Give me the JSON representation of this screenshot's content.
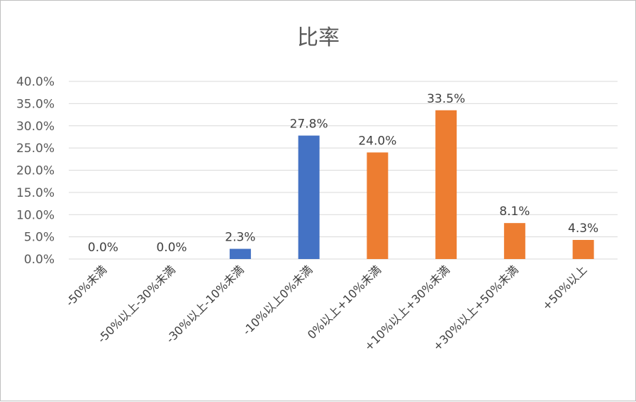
{
  "chart_data": {
    "type": "bar",
    "title": "比率",
    "xlabel": "",
    "ylabel": "",
    "ylim": [
      0,
      0.4
    ],
    "yticks": [
      "0.0%",
      "5.0%",
      "10.0%",
      "15.0%",
      "20.0%",
      "25.0%",
      "30.0%",
      "35.0%",
      "40.0%"
    ],
    "grid": true,
    "legend": "none",
    "categories": [
      "-50%未満",
      "-50%以上-30%未満",
      "-30%以上-10%未満",
      "-10%以上0%未満",
      "0%以上+10%未満",
      "+10%以上+30%未満",
      "+30%以上+50%未満",
      "+50%以上"
    ],
    "values": [
      0.0,
      0.0,
      0.023,
      0.278,
      0.24,
      0.335,
      0.081,
      0.043
    ],
    "value_labels": [
      "0.0%",
      "0.0%",
      "2.3%",
      "27.8%",
      "24.0%",
      "33.5%",
      "8.1%",
      "4.3%"
    ],
    "bar_colors": [
      "#4472c4",
      "#4472c4",
      "#4472c4",
      "#4472c4",
      "#ed7d31",
      "#ed7d31",
      "#ed7d31",
      "#ed7d31"
    ]
  }
}
